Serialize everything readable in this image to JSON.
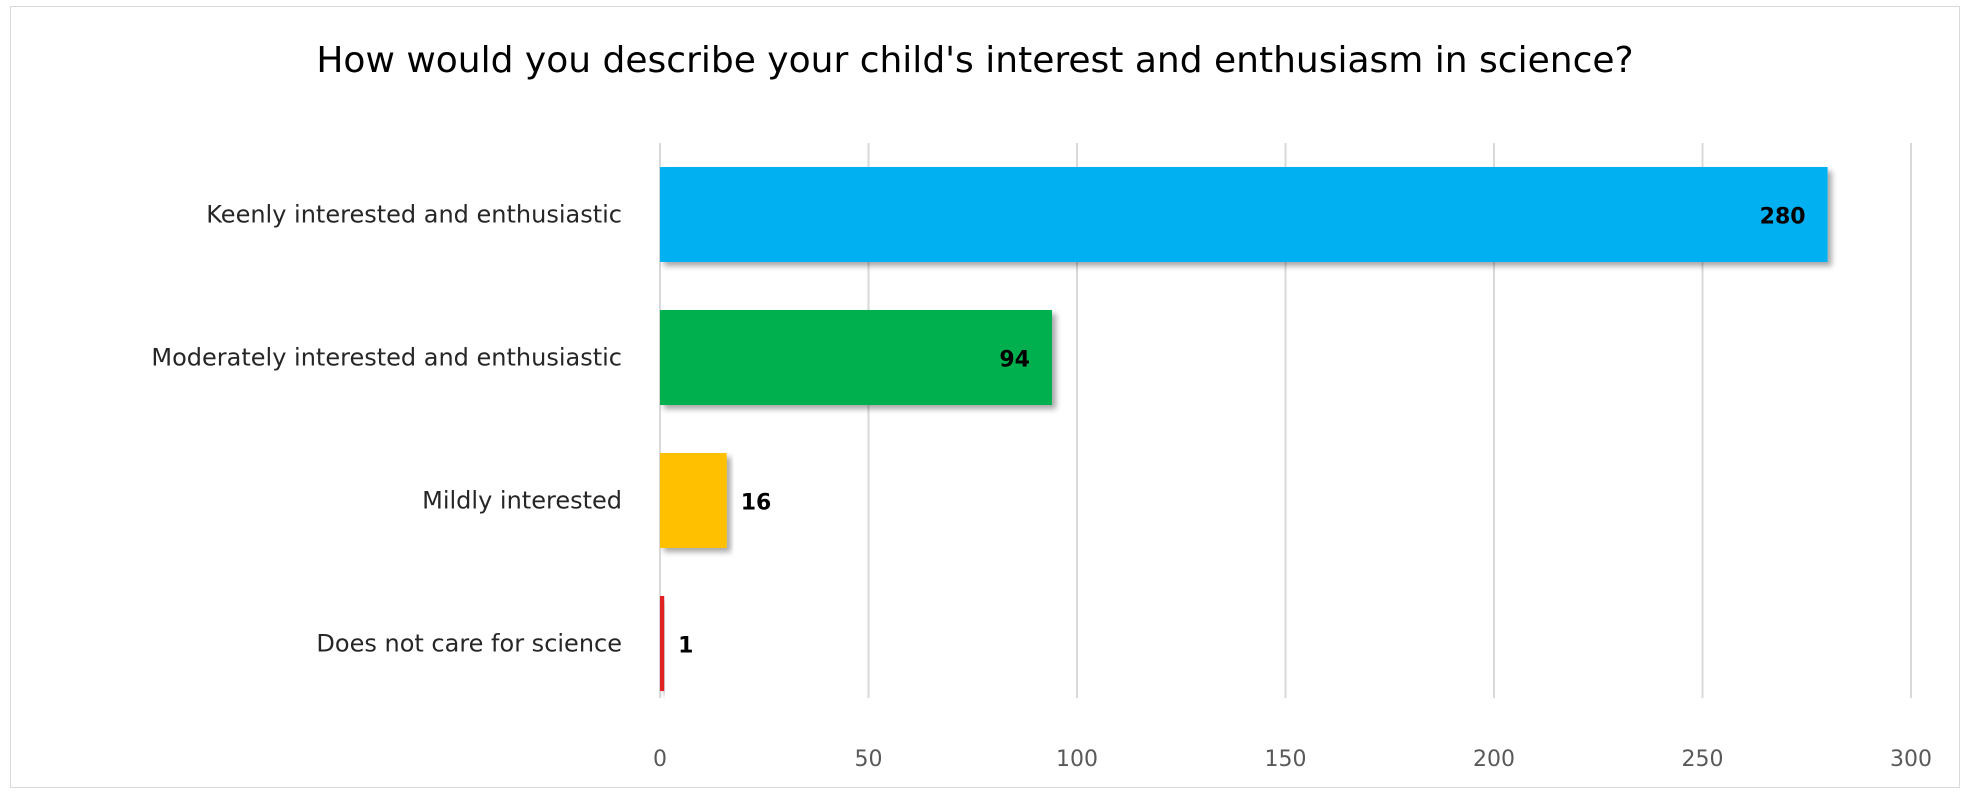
{
  "chart_data": {
    "type": "bar",
    "orientation": "horizontal",
    "title": "How would you describe your child's interest and enthusiasm in science?",
    "categories": [
      "Keenly interested and enthusiastic",
      "Moderately interested and enthusiastic",
      "Mildly interested",
      "Does not care for science"
    ],
    "values": [
      280,
      94,
      16,
      1
    ],
    "colors": [
      "#00b0f0",
      "#00b050",
      "#ffc000",
      "#e02020"
    ],
    "xlim": [
      0,
      300
    ],
    "xticks": [
      "0",
      "50",
      "100",
      "150",
      "200",
      "250",
      "300"
    ],
    "grid": true,
    "legend": "none"
  }
}
